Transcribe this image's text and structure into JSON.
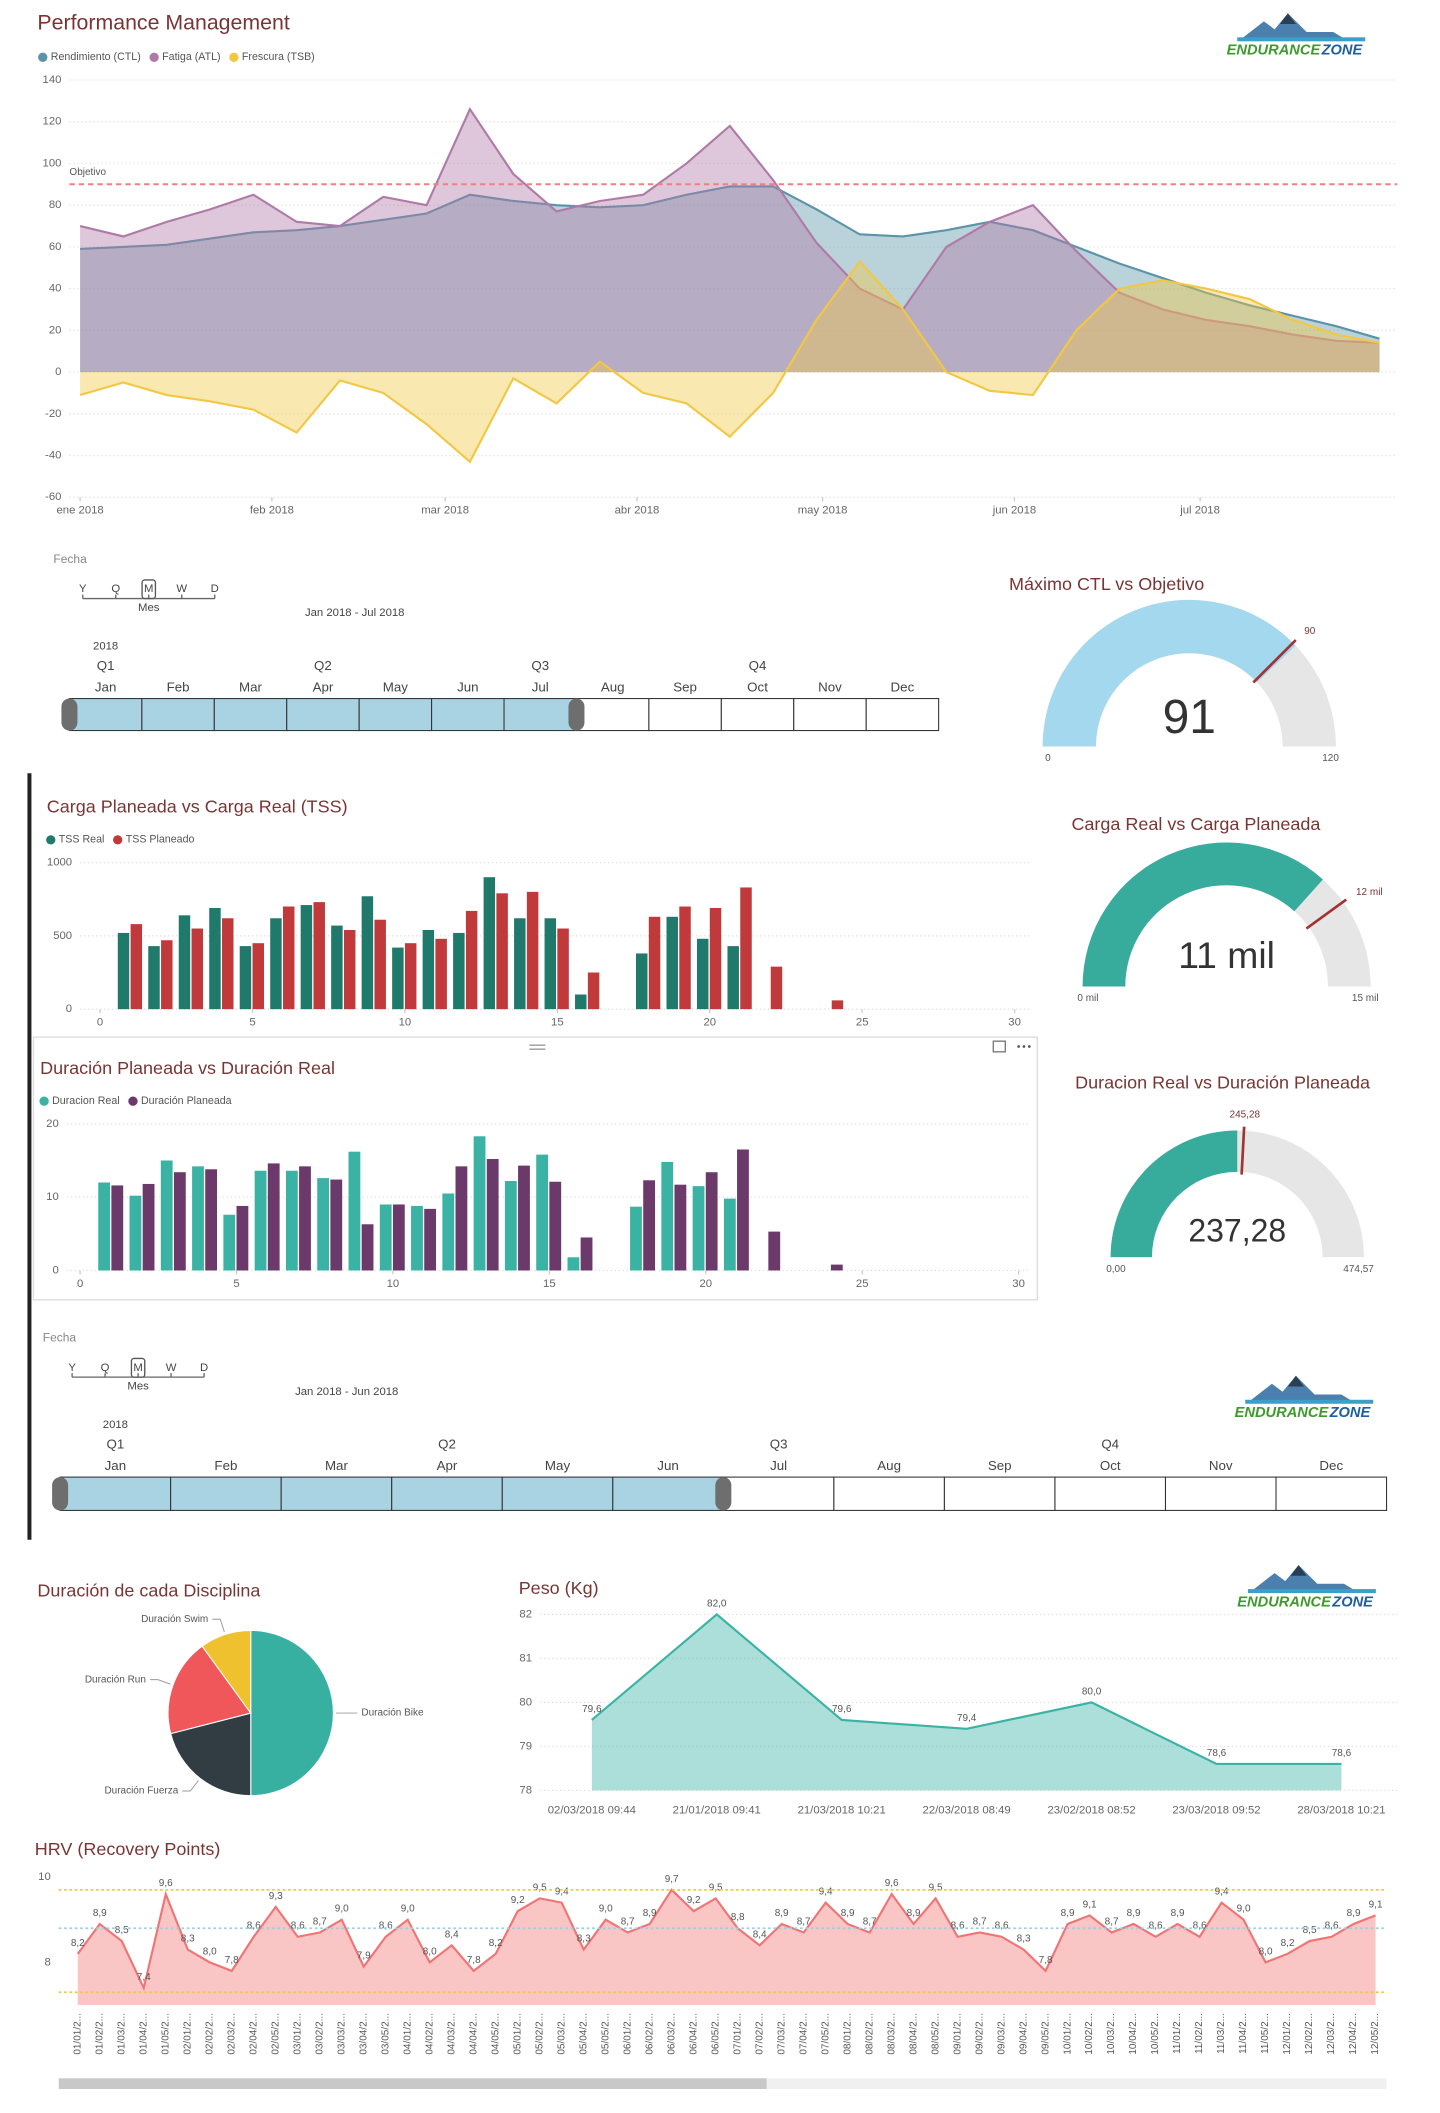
{
  "chart_data": [
    {
      "type": "area",
      "title": "Performance Management",
      "x": [
        0,
        7,
        14,
        21,
        28,
        35,
        42,
        49,
        56,
        63,
        70,
        77,
        84,
        91,
        98,
        105,
        112,
        119,
        126,
        133,
        140,
        147,
        154,
        161,
        168,
        175,
        182,
        189,
        196,
        203,
        210
      ],
      "xlim": [
        0,
        212
      ],
      "xticks": [
        {
          "value": 0,
          "label": "ene 2018"
        },
        {
          "value": 31,
          "label": "feb 2018"
        },
        {
          "value": 59,
          "label": "mar 2018"
        },
        {
          "value": 90,
          "label": "abr 2018"
        },
        {
          "value": 120,
          "label": "may 2018"
        },
        {
          "value": 151,
          "label": "jun 2018"
        },
        {
          "value": 181,
          "label": "jul 2018"
        }
      ],
      "ylim": [
        -60,
        140
      ],
      "yticks": [
        -60,
        -40,
        -20,
        0,
        20,
        40,
        60,
        80,
        100,
        120,
        140
      ],
      "grid": true,
      "target": {
        "value": 90,
        "label": "Objetivo",
        "color": "#f08080"
      },
      "series": [
        {
          "name": "Rendimiento (CTL)",
          "color": "#5b93a8",
          "values": [
            59,
            60,
            61,
            64,
            67,
            68,
            70,
            73,
            76,
            85,
            82,
            80,
            79,
            80,
            85,
            89,
            89,
            78,
            66,
            65,
            68,
            72,
            68,
            60,
            52,
            45,
            38,
            32,
            27,
            22,
            16
          ]
        },
        {
          "name": "Fatiga (ATL)",
          "color": "#b07aa8",
          "values": [
            70,
            65,
            72,
            78,
            85,
            72,
            70,
            84,
            80,
            126,
            95,
            77,
            82,
            85,
            100,
            118,
            92,
            62,
            40,
            30,
            60,
            72,
            80,
            58,
            38,
            30,
            25,
            22,
            18,
            15,
            14
          ]
        },
        {
          "name": "Frescura (TSB)",
          "color": "#f2c744",
          "values": [
            -11,
            -5,
            -11,
            -14,
            -18,
            -29,
            -4,
            -10,
            -25,
            -43,
            -3,
            -15,
            5,
            -10,
            -15,
            -31,
            -10,
            25,
            53,
            30,
            0,
            -9,
            -11,
            20,
            40,
            44,
            40,
            35,
            25,
            18,
            14
          ]
        }
      ]
    },
    {
      "type": "gauge",
      "title": "Máximo CTL vs Objetivo",
      "value": 91,
      "min": 0,
      "max": 120,
      "target": 90,
      "color": "#a3d8ee",
      "target_color": "#a33333"
    },
    {
      "type": "bar",
      "title": "Carga Planeada vs Carga Real (TSS)",
      "x": [
        1,
        2,
        3,
        4,
        5,
        6,
        7,
        8,
        9,
        10,
        11,
        12,
        13,
        14,
        15,
        16,
        17,
        18,
        19,
        20,
        21,
        22,
        23,
        24
      ],
      "xlim": [
        0,
        30
      ],
      "xticks": [
        0,
        5,
        10,
        15,
        20,
        25,
        30
      ],
      "ylim": [
        0,
        1000
      ],
      "yticks": [
        0,
        500,
        1000
      ],
      "grid": true,
      "series": [
        {
          "name": "TSS Real",
          "color": "#1f7a6c",
          "values": [
            520,
            430,
            640,
            690,
            430,
            620,
            710,
            570,
            770,
            420,
            540,
            520,
            900,
            620,
            620,
            100,
            null,
            380,
            630,
            480,
            430,
            null,
            null,
            null
          ]
        },
        {
          "name": "TSS Planeado",
          "color": "#c0393b",
          "values": [
            580,
            470,
            550,
            620,
            450,
            700,
            730,
            540,
            610,
            450,
            480,
            670,
            790,
            800,
            550,
            250,
            null,
            630,
            700,
            690,
            830,
            290,
            null,
            60
          ]
        }
      ]
    },
    {
      "type": "gauge",
      "title": "Carga Real vs Carga Planeada",
      "value": {
        "value": 11000,
        "label": "11 mil"
      },
      "min": {
        "value": 0,
        "label": "0 mil"
      },
      "max": {
        "value": 15000,
        "label": "15 mil"
      },
      "target": {
        "value": 12000,
        "label": "12 mil"
      },
      "color": "#37ab9c",
      "target_color": "#a33333"
    },
    {
      "type": "bar",
      "title": "Duración Planeada vs Duración Real",
      "x": [
        1,
        2,
        3,
        4,
        5,
        6,
        7,
        8,
        9,
        10,
        11,
        12,
        13,
        14,
        15,
        16,
        17,
        18,
        19,
        20,
        21,
        22,
        23,
        24
      ],
      "xlim": [
        0,
        30
      ],
      "xticks": [
        0,
        5,
        10,
        15,
        20,
        25,
        30
      ],
      "ylim": [
        0,
        20
      ],
      "yticks": [
        0,
        10,
        20
      ],
      "grid": true,
      "series": [
        {
          "name": "Duracion Real",
          "color": "#3ab3a4",
          "values": [
            12,
            10.2,
            15,
            14.2,
            7.6,
            13.6,
            13.6,
            12.6,
            16.2,
            9,
            8.8,
            10.5,
            18.3,
            12.2,
            15.8,
            1.8,
            null,
            8.7,
            14.8,
            11.5,
            9.8,
            null,
            null,
            null
          ]
        },
        {
          "name": "Duración Planeada",
          "color": "#6b3a6b",
          "values": [
            11.6,
            11.8,
            13.4,
            13.8,
            8.8,
            14.6,
            14.2,
            12.4,
            6.3,
            9,
            8.4,
            14.2,
            15.2,
            14.3,
            12.1,
            4.5,
            null,
            12.3,
            11.7,
            13.4,
            16.5,
            5.3,
            null,
            0.8
          ]
        }
      ]
    },
    {
      "type": "gauge",
      "title": "Duracion Real vs Duración Planeada",
      "value": {
        "value": 237.28,
        "label": "237,28"
      },
      "min": {
        "value": 0,
        "label": "0,00"
      },
      "max": {
        "value": 474.57,
        "label": "474,57"
      },
      "target": {
        "value": 245.28,
        "label": "245,28"
      },
      "color": "#37ab9c",
      "target_color": "#a33333"
    },
    {
      "type": "pie",
      "title": "Duración de cada Disciplina",
      "categories": [
        "Duración Bike",
        "Duración Fuerza",
        "Duración Run",
        "Duración Swim"
      ],
      "values": [
        50,
        21,
        19,
        10
      ],
      "colors": [
        "#37b0a2",
        "#313d42",
        "#f0575a",
        "#f0c12e"
      ]
    },
    {
      "type": "area",
      "title": "Peso (Kg)",
      "categories": [
        "02/03/2018 09:44",
        "21/01/2018 09:41",
        "21/03/2018 10:21",
        "22/03/2018 08:49",
        "23/02/2018 08:52",
        "23/03/2018 09:52",
        "28/03/2018 10:21"
      ],
      "values": [
        79.6,
        82.0,
        79.6,
        79.4,
        80.0,
        78.6,
        78.6
      ],
      "value_labels": [
        "79,6",
        "82,0",
        "79,6",
        "79,4",
        "80,0",
        "78,6",
        "78,6"
      ],
      "color": "#3ab3a4",
      "ylim": [
        78,
        82
      ],
      "yticks": [
        78,
        79,
        80,
        81,
        82
      ],
      "grid": true
    },
    {
      "type": "area",
      "title": "HRV (Recovery Points)",
      "categories": [
        "01/01/2...",
        "01/02/2...",
        "01/03/2...",
        "01/04/2...",
        "01/05/2...",
        "02/01/2...",
        "02/02/2...",
        "02/03/2...",
        "02/04/2...",
        "02/05/2...",
        "03/01/2...",
        "03/02/2...",
        "03/03/2...",
        "03/04/2...",
        "03/05/2...",
        "04/01/2...",
        "04/02/2...",
        "04/03/2...",
        "04/04/2...",
        "04/05/2...",
        "05/01/2...",
        "05/02/2...",
        "05/03/2...",
        "05/04/2...",
        "05/05/2...",
        "06/01/2...",
        "06/02/2...",
        "06/03/2...",
        "06/04/2...",
        "06/05/2...",
        "07/01/2...",
        "07/02/2...",
        "07/03/2...",
        "07/04/2...",
        "07/05/2...",
        "08/01/2...",
        "08/02/2...",
        "08/03/2...",
        "08/04/2...",
        "08/05/2...",
        "09/01/2...",
        "09/02/2...",
        "09/03/2...",
        "09/04/2...",
        "09/05/2...",
        "10/01/2...",
        "10/02/2...",
        "10/03/2...",
        "10/04/2...",
        "10/05/2...",
        "11/01/2...",
        "11/02/2...",
        "11/03/2...",
        "11/04/2...",
        "11/05/2...",
        "12/01/2...",
        "12/02/2...",
        "12/03/2...",
        "12/04/2...",
        "12/05/2..."
      ],
      "values": [
        8.2,
        8.9,
        8.5,
        7.4,
        9.6,
        8.3,
        8.0,
        7.8,
        8.6,
        9.3,
        8.6,
        8.7,
        9.0,
        7.9,
        8.6,
        9.0,
        8.0,
        8.4,
        7.8,
        8.2,
        9.2,
        9.5,
        9.4,
        8.3,
        9.0,
        8.7,
        8.9,
        9.7,
        9.2,
        9.5,
        8.8,
        8.4,
        8.9,
        8.7,
        9.4,
        8.9,
        8.7,
        9.6,
        8.9,
        9.5,
        8.6,
        8.7,
        8.6,
        8.3,
        7.8,
        8.9,
        9.1,
        8.7,
        8.9,
        8.6,
        8.9,
        8.6,
        9.4,
        9.0,
        8.0,
        8.2,
        8.5,
        8.6,
        8.9,
        9.1
      ],
      "value_labels": [
        "8,2",
        "8,9",
        "8,5",
        "7,4",
        "9,6",
        "8,3",
        "8,0",
        "7,8",
        "8,6",
        "9,3",
        "8,6",
        "8,7",
        "9,0",
        "7,9",
        "8,6",
        "9,0",
        "8,0",
        "8,4",
        "7,8",
        "8,2",
        "9,2",
        "9,5",
        "9,4",
        "8,3",
        "9,0",
        "8,7",
        "8,9",
        "9,7",
        "9,2",
        "9,5",
        "8,8",
        "8,4",
        "8,9",
        "8,7",
        "9,4",
        "8,9",
        "8,7",
        "9,6",
        "8,9",
        "9,5",
        "8,6",
        "8,7",
        "8,6",
        "8,3",
        "7,8",
        "8,9",
        "9,1",
        "8,7",
        "8,9",
        "8,6",
        "8,9",
        "8,6",
        "9,4",
        "9,0",
        "8,0",
        "8,2",
        "8,5",
        "8,6",
        "8,9",
        "9,1"
      ],
      "color": "#f07474",
      "ylim": [
        7,
        10
      ],
      "yticks": [
        8,
        10
      ],
      "grid": false,
      "reference_lines": [
        {
          "value": 9.7,
          "color": "#f2c744"
        },
        {
          "value": 8.8,
          "color": "#9ccfe6"
        },
        {
          "value": 7.3,
          "color": "#f2c744"
        }
      ]
    }
  ],
  "slicers": [
    {
      "label": "Fecha",
      "levels": [
        "Y",
        "Q",
        "M",
        "W",
        "D"
      ],
      "level_index": 2,
      "level": "Mes",
      "range": "Jan 2018 - Jul 2018",
      "year": "2018",
      "quarters": [
        "Q1",
        "Q2",
        "Q3",
        "Q4"
      ],
      "months": [
        "Jan",
        "Feb",
        "Mar",
        "Apr",
        "May",
        "Jun",
        "Jul",
        "Aug",
        "Sep",
        "Oct",
        "Nov",
        "Dec"
      ],
      "selected": [
        0,
        6
      ]
    },
    {
      "label": "Fecha",
      "levels": [
        "Y",
        "Q",
        "M",
        "W",
        "D"
      ],
      "level_index": 2,
      "level": "Mes",
      "range": "Jan 2018 - Jun 2018",
      "year": "2018",
      "quarters": [
        "Q1",
        "Q2",
        "Q3",
        "Q4"
      ],
      "months": [
        "Jan",
        "Feb",
        "Mar",
        "Apr",
        "May",
        "Jun",
        "Jul",
        "Aug",
        "Sep",
        "Oct",
        "Nov",
        "Dec"
      ],
      "selected": [
        0,
        5
      ]
    }
  ],
  "logo": {
    "name": "ENDURANCE",
    "suffix": "ZONE"
  }
}
